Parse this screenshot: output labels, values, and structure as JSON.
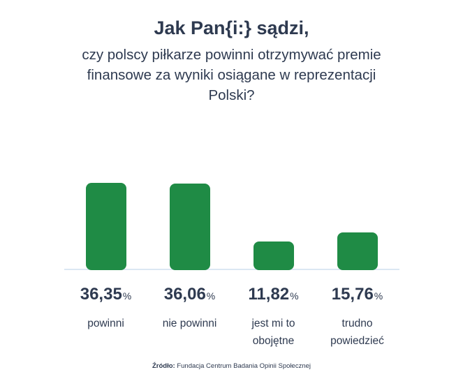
{
  "chart_data": {
    "type": "bar",
    "title": "Jak Pan{i:} sądzi,",
    "subtitle": "czy polscy piłkarze powinni otrzymywać premie finansowe za wyniki osiągane w reprezentacji Polski?",
    "categories": [
      "powinni",
      "nie powinni",
      "jest mi to obojętne",
      "trudno powiedzieć"
    ],
    "categories_lines": [
      [
        "powinni"
      ],
      [
        "nie powinni"
      ],
      [
        "jest mi to",
        "obojętne"
      ],
      [
        "trudno",
        "powiedzieć"
      ]
    ],
    "values": [
      36.35,
      36.06,
      11.82,
      15.76
    ],
    "values_display": [
      "36,35",
      "36,06",
      "11,82",
      "15,76"
    ],
    "percent_sign": "%",
    "unit": "%",
    "ylim": [
      0,
      36.35
    ],
    "grid": false,
    "legend": false,
    "source_label": "Źródło:",
    "source_text": "Fundacja Centrum Badania Opinii Społecznej",
    "colors": {
      "bar": "#1f8b45",
      "baseline": "#dbe7f3",
      "text": "#2e3a50",
      "background": "#ffffff"
    }
  }
}
